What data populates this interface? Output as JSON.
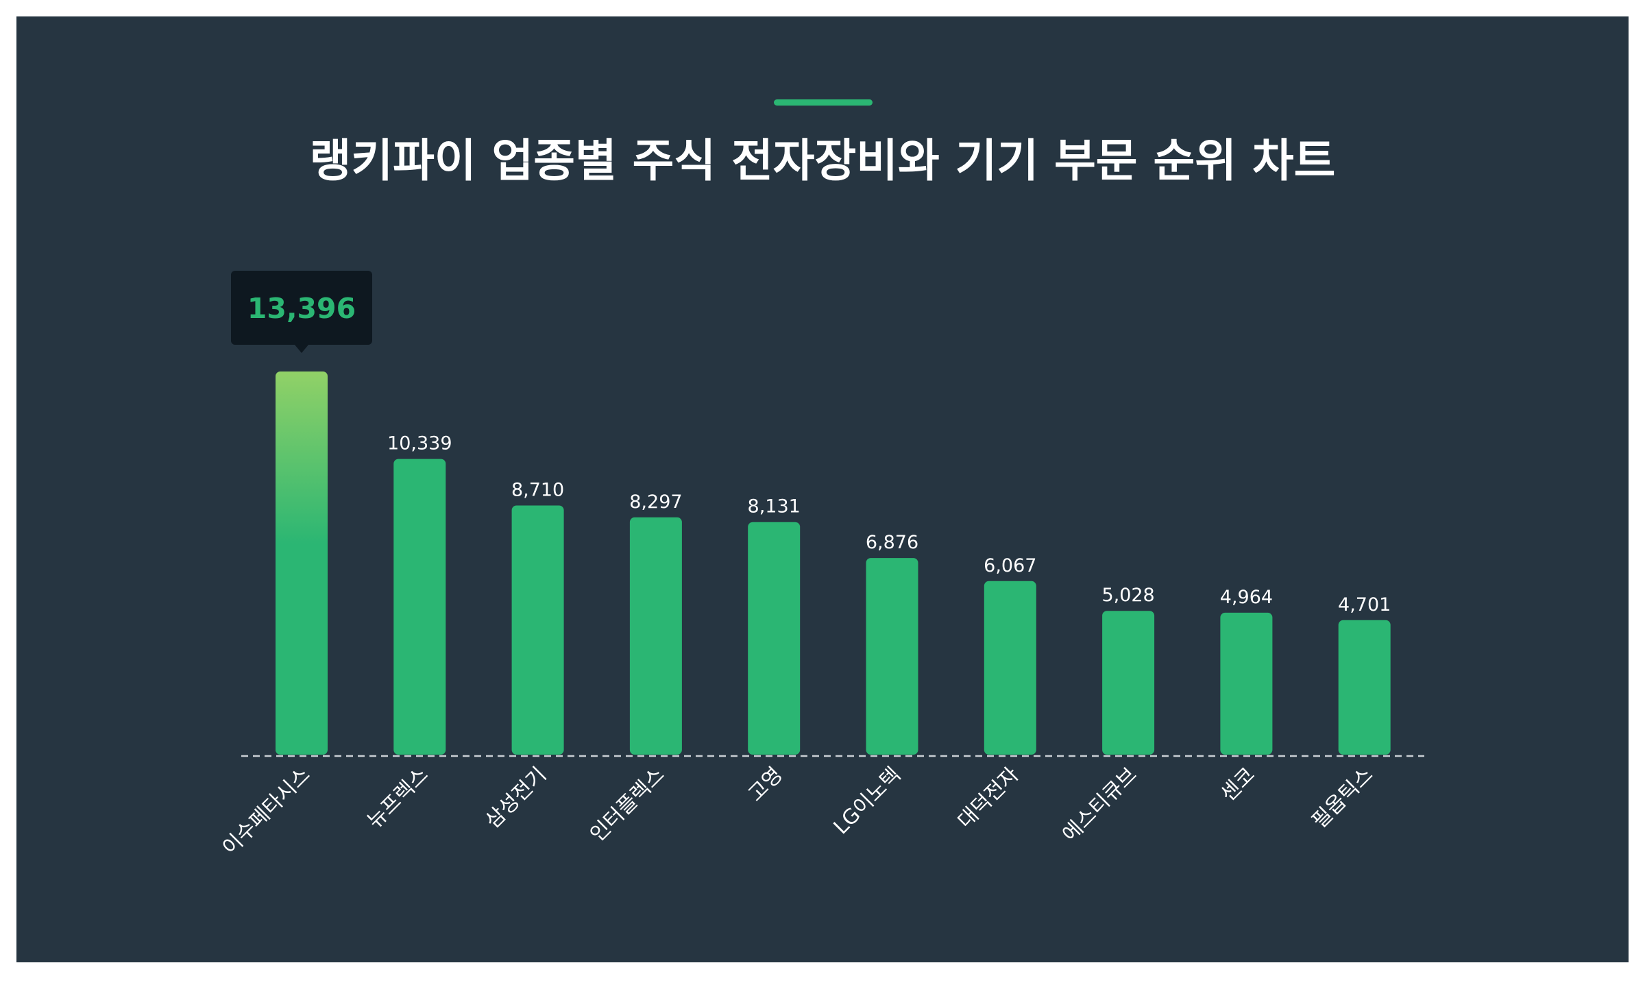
{
  "title": "랭키파이 업종별 주식 전자장비와 기기 부문 순위 차트",
  "colors": {
    "background": "#263541",
    "bar": "#2bb673",
    "top_bar_gradient_start": "#91d167",
    "tooltip_bg": "#0e1820",
    "tooltip_text": "#2bb673",
    "text": "#ffffff"
  },
  "chart_data": {
    "type": "bar",
    "categories": [
      "이수페타시스",
      "뉴프렉스",
      "삼성전기",
      "인터플렉스",
      "고영",
      "LG이노텍",
      "대덕전자",
      "에스티큐브",
      "센코",
      "필옵틱스"
    ],
    "values": [
      13396,
      10339,
      8710,
      8297,
      8131,
      6876,
      6067,
      5028,
      4964,
      4701
    ],
    "value_labels": [
      "13,396",
      "10,339",
      "8,710",
      "8,297",
      "8,131",
      "6,876",
      "6,067",
      "5,028",
      "4,964",
      "4,701"
    ],
    "highlight_index": 0,
    "ylim": [
      0,
      13396
    ],
    "grid": false,
    "legend": "none"
  }
}
